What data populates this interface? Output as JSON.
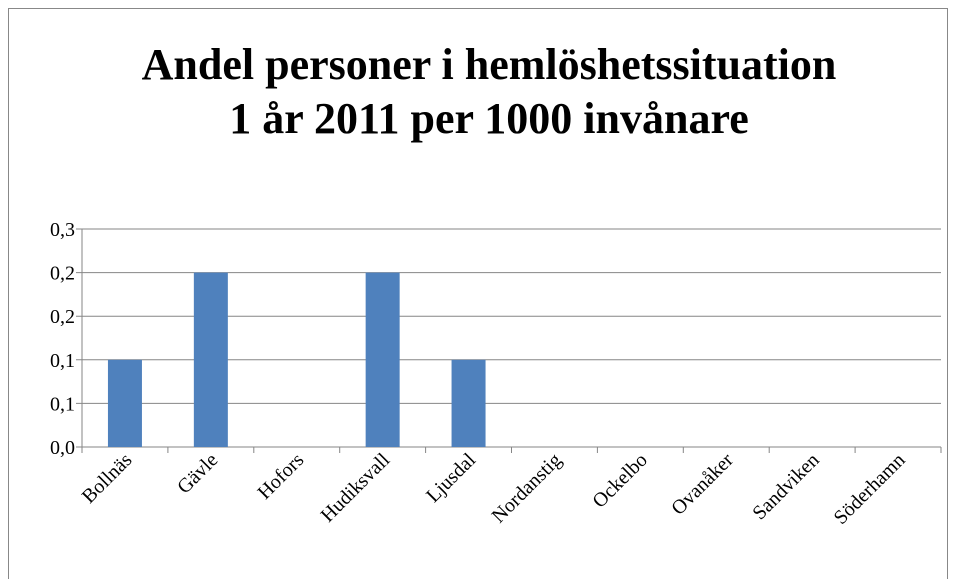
{
  "chart_data": {
    "type": "bar",
    "title": "Andel personer i hemlöshetssituation 1 år 2011 per 1000 invånare",
    "categories": [
      "Bollnäs",
      "Gävle",
      "Hofors",
      "Hudiksvall",
      "Ljusdal",
      "Nordanstig",
      "Ockelbo",
      "Ovanåker",
      "Sandviken",
      "Söderhamn"
    ],
    "values": [
      0.12,
      0.24,
      0,
      0.24,
      0.12,
      0,
      0,
      0,
      0,
      0
    ],
    "color": "#4f81bd",
    "ylim": [
      0,
      0.3
    ],
    "yticks": [
      {
        "value": 0,
        "label": "0,0"
      },
      {
        "value": 0.06,
        "label": "0,1"
      },
      {
        "value": 0.12,
        "label": "0,1"
      },
      {
        "value": 0.18,
        "label": "0,2"
      },
      {
        "value": 0.24,
        "label": "0,2"
      },
      {
        "value": 0.3,
        "label": "0,3"
      }
    ],
    "grid": true
  }
}
